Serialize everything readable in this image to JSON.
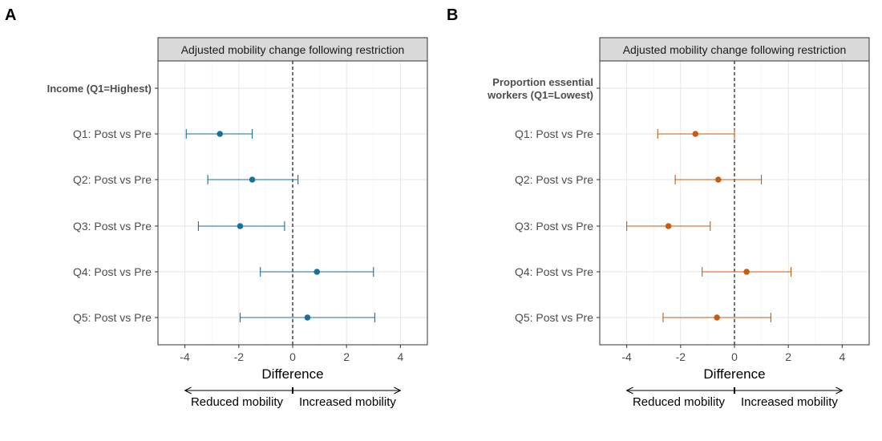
{
  "chart_data": [
    {
      "type": "forest",
      "panel_label": "A",
      "strip_title": "Adjusted mobility change following restriction",
      "group_header": [
        "Income (Q1=Highest)"
      ],
      "categories": [
        "Q1: Post vs Pre",
        "Q2: Post vs Pre",
        "Q3: Post vs Pre",
        "Q4: Post vs Pre",
        "Q5: Post vs Pre"
      ],
      "estimates": [
        -2.7,
        -1.5,
        -1.95,
        0.9,
        0.55
      ],
      "lower": [
        -3.95,
        -3.15,
        -3.5,
        -1.2,
        -1.95
      ],
      "upper": [
        -1.5,
        0.2,
        -0.3,
        3.0,
        3.05
      ],
      "xlabel": "Difference",
      "xticks": [
        "-4",
        "-2",
        "0",
        "2",
        "4"
      ],
      "xlim": [
        -5,
        5
      ],
      "reference_line": 0,
      "left_arrow_label": "Reduced mobility",
      "right_arrow_label": "Increased mobility",
      "grid": true,
      "color": "#1a6fa0"
    },
    {
      "type": "forest",
      "panel_label": "B",
      "strip_title": "Adjusted mobility change following restriction",
      "group_header": [
        "Proportion essential",
        "workers (Q1=Lowest)"
      ],
      "categories": [
        "Q1: Post vs Pre",
        "Q2: Post vs Pre",
        "Q3: Post vs Pre",
        "Q4: Post vs Pre",
        "Q5: Post vs Pre"
      ],
      "estimates": [
        -1.45,
        -0.6,
        -2.45,
        0.45,
        -0.65
      ],
      "lower": [
        -2.85,
        -2.2,
        -4.0,
        -1.2,
        -2.65
      ],
      "upper": [
        0.0,
        1.0,
        -0.9,
        2.1,
        1.35
      ],
      "xlabel": "Difference",
      "xticks": [
        "-4",
        "-2",
        "0",
        "2",
        "4"
      ],
      "xlim": [
        -5,
        5
      ],
      "reference_line": 0,
      "left_arrow_label": "Reduced mobility",
      "right_arrow_label": "Increased mobility",
      "grid": true,
      "color": "#c75b12"
    }
  ]
}
